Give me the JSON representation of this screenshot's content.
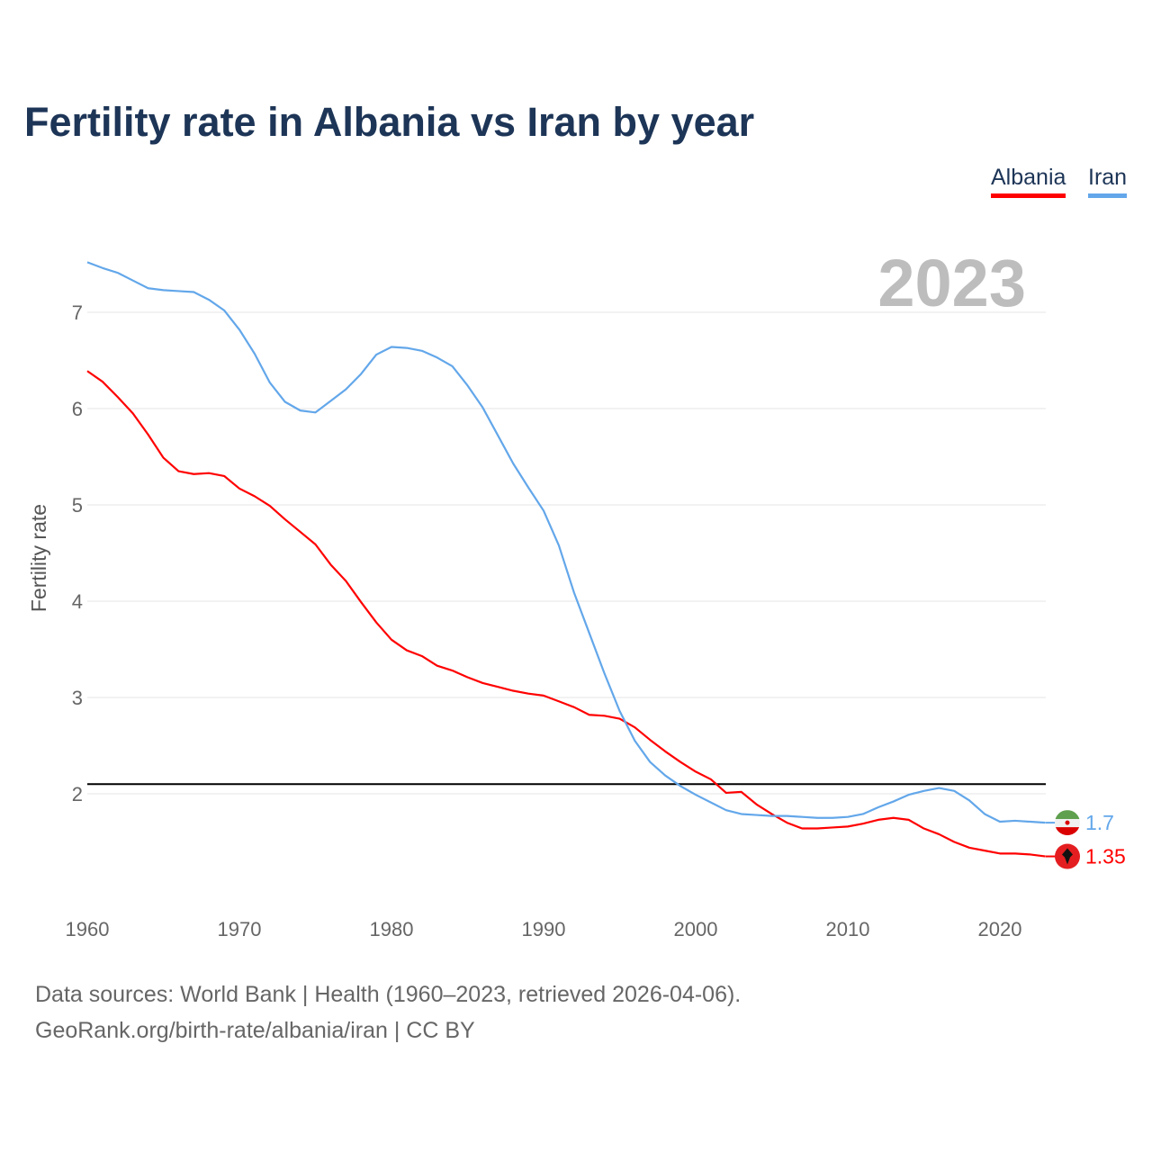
{
  "chart_data": {
    "type": "line",
    "title": "Fertility rate in Albania vs Iran by year",
    "xlabel": "",
    "ylabel": "Fertility rate",
    "xlim": [
      1960,
      2023
    ],
    "ylim": [
      0,
      7.6
    ],
    "x_ticks": [
      "1960",
      "1970",
      "1980",
      "1990",
      "2000",
      "2010",
      "2020"
    ],
    "y_ticks": [
      "2",
      "3",
      "4",
      "5",
      "6",
      "7"
    ],
    "grid": true,
    "legend_placement": "top-right",
    "year_watermark": "2023",
    "reference_line": 2.1,
    "x": [
      1960,
      1961,
      1962,
      1963,
      1964,
      1965,
      1966,
      1967,
      1968,
      1969,
      1970,
      1971,
      1972,
      1973,
      1974,
      1975,
      1976,
      1977,
      1978,
      1979,
      1980,
      1981,
      1982,
      1983,
      1984,
      1985,
      1986,
      1987,
      1988,
      1989,
      1990,
      1991,
      1992,
      1993,
      1994,
      1995,
      1996,
      1997,
      1998,
      1999,
      2000,
      2001,
      2002,
      2003,
      2004,
      2005,
      2006,
      2007,
      2008,
      2009,
      2010,
      2011,
      2012,
      2013,
      2014,
      2015,
      2016,
      2017,
      2018,
      2019,
      2020,
      2021,
      2022,
      2023
    ],
    "series": [
      {
        "name": "Albania",
        "color": "#ff0000",
        "end_label": "1.35",
        "values": [
          6.39,
          6.28,
          6.12,
          5.95,
          5.73,
          5.49,
          5.35,
          5.32,
          5.33,
          5.3,
          5.17,
          5.09,
          4.99,
          4.85,
          4.72,
          4.59,
          4.38,
          4.21,
          3.99,
          3.78,
          3.6,
          3.49,
          3.43,
          3.33,
          3.28,
          3.21,
          3.15,
          3.11,
          3.07,
          3.04,
          3.02,
          2.96,
          2.9,
          2.82,
          2.81,
          2.78,
          2.69,
          2.56,
          2.44,
          2.33,
          2.23,
          2.15,
          2.01,
          2.02,
          1.89,
          1.79,
          1.7,
          1.64,
          1.64,
          1.65,
          1.66,
          1.69,
          1.73,
          1.75,
          1.73,
          1.64,
          1.58,
          1.5,
          1.44,
          1.41,
          1.38,
          1.38,
          1.37,
          1.35
        ]
      },
      {
        "name": "Iran",
        "color": "#63a7ea",
        "end_label": "1.7",
        "values": [
          7.52,
          7.46,
          7.41,
          7.33,
          7.25,
          7.23,
          7.22,
          7.21,
          7.13,
          7.02,
          6.82,
          6.57,
          6.27,
          6.07,
          5.98,
          5.96,
          6.08,
          6.2,
          6.36,
          6.56,
          6.64,
          6.63,
          6.6,
          6.53,
          6.44,
          6.24,
          6.01,
          5.72,
          5.43,
          5.18,
          4.94,
          4.58,
          4.09,
          3.67,
          3.25,
          2.86,
          2.55,
          2.33,
          2.19,
          2.08,
          1.99,
          1.91,
          1.83,
          1.79,
          1.78,
          1.77,
          1.77,
          1.76,
          1.75,
          1.75,
          1.76,
          1.79,
          1.86,
          1.92,
          1.99,
          2.03,
          2.06,
          2.03,
          1.93,
          1.79,
          1.71,
          1.72,
          1.71,
          1.7
        ]
      }
    ]
  },
  "footer": {
    "line1": "Data sources: World Bank | Health (1960–2023, retrieved 2026-04-06).",
    "line2": "GeoRank.org/birth-rate/albania/iran | CC BY"
  }
}
